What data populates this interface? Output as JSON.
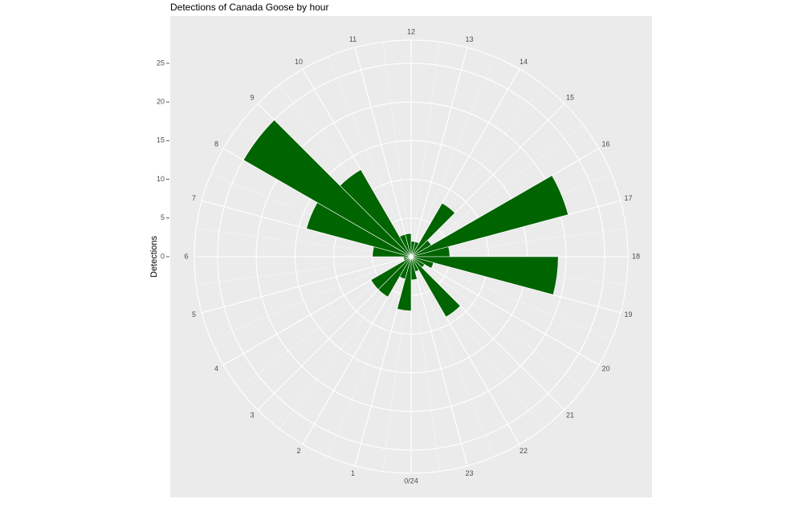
{
  "chart_data": {
    "type": "polar-bar",
    "title": "Detections of Canada Goose by hour",
    "y_label": "Detections",
    "x": [
      0,
      1,
      2,
      3,
      4,
      5,
      6,
      7,
      8,
      9,
      10,
      11,
      12,
      13,
      14,
      15,
      16,
      17,
      18,
      19,
      20,
      21,
      22,
      23
    ],
    "values": [
      7,
      3,
      6,
      6,
      1,
      1,
      5,
      14,
      25,
      13,
      3,
      3,
      2,
      2,
      8,
      3,
      21,
      5,
      19,
      3,
      2,
      9,
      2,
      3
    ],
    "color": "#006400",
    "xlim": [
      0,
      24
    ],
    "xticks": [
      {
        "value": 0,
        "label": "0/24"
      },
      1,
      2,
      3,
      4,
      5,
      6,
      7,
      8,
      9,
      10,
      11,
      12,
      13,
      14,
      15,
      16,
      17,
      18,
      19,
      20,
      21,
      22,
      23
    ],
    "ylim": [
      0,
      28
    ],
    "yticks": [
      0,
      5,
      10,
      15,
      20,
      25
    ],
    "grid": true
  }
}
